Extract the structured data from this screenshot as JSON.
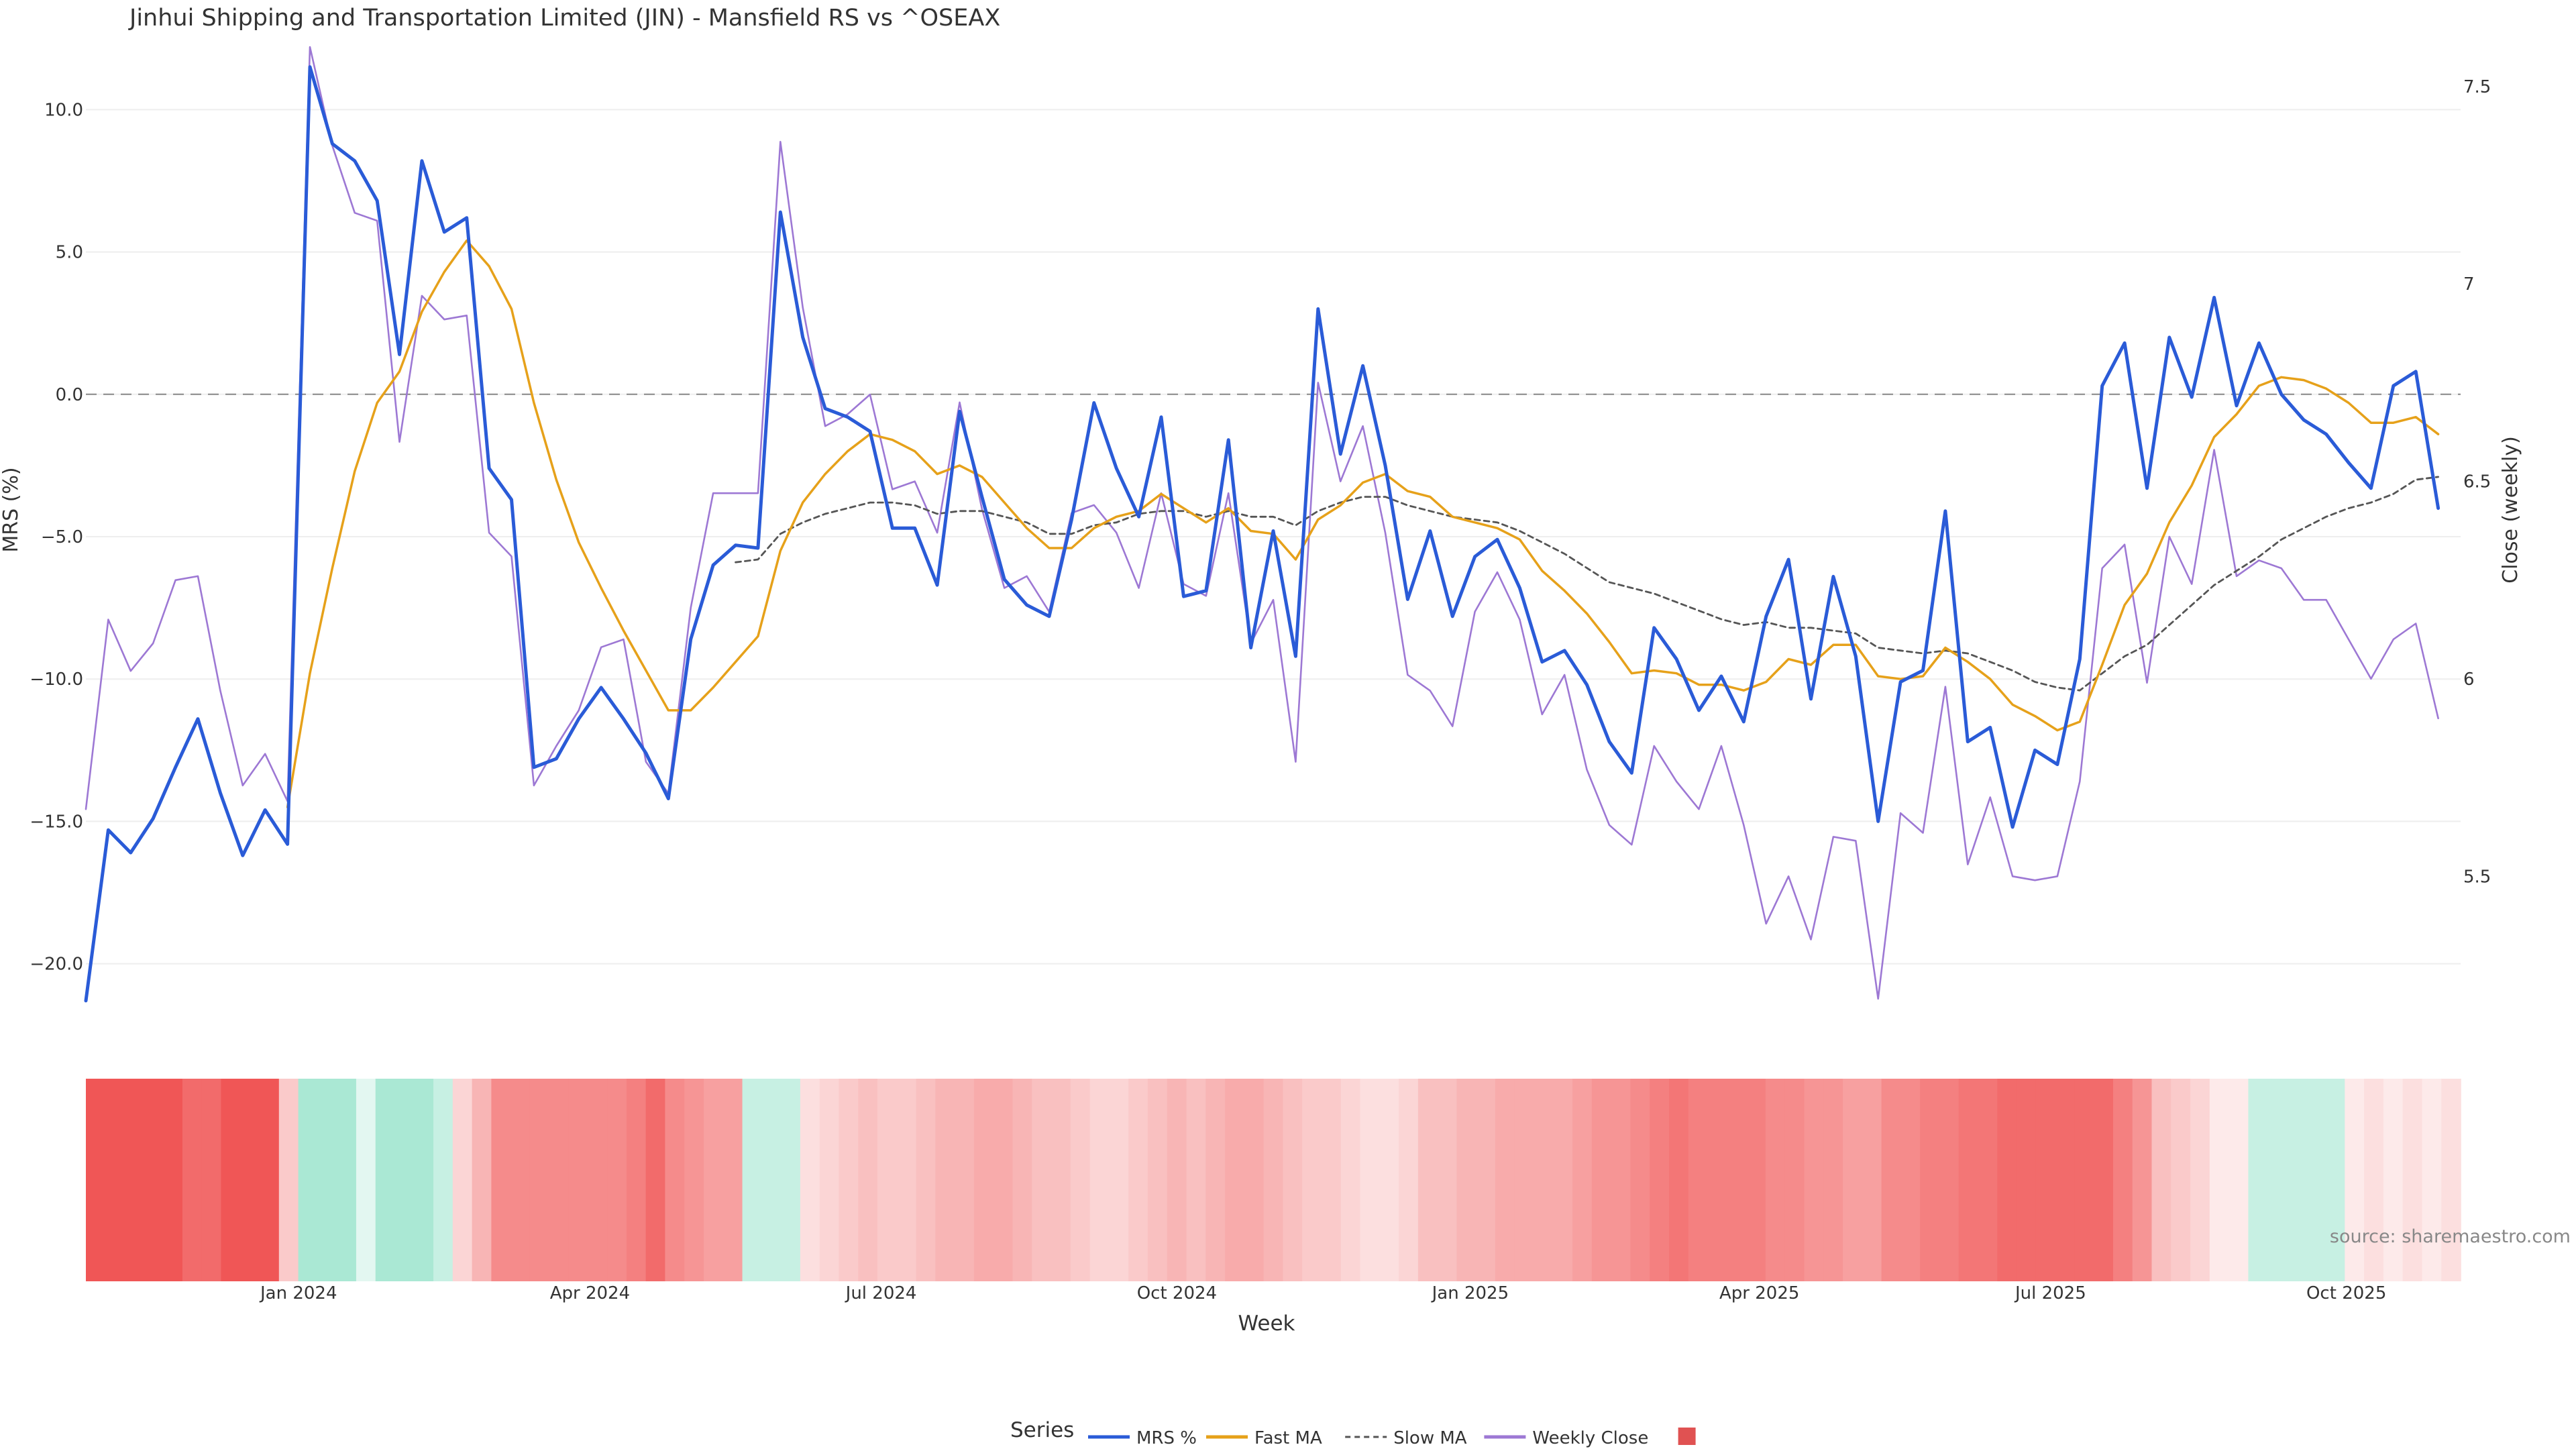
{
  "chart_data": {
    "type": "line",
    "title": "Jinhui Shipping and Transportation Limited (JIN) - Mansfield RS vs ^OSEAX",
    "xlabel": "Week",
    "ylabel_left": "MRS (%)",
    "ylabel_right": "Close (weekly)",
    "source": "source: sharemaestro.com",
    "grid": true,
    "legend_position": "bottom-center",
    "legend_title": "Series",
    "y_left_range": [
      -22.2,
      12.2
    ],
    "y_left_ticks": [
      "10.0",
      "5.0",
      "0.0",
      "−5.0",
      "−10.0",
      "−15.0",
      "−20.0"
    ],
    "y_right_range": [
      5.12,
      7.6
    ],
    "y_right_ticks": [
      "7.5",
      "7",
      "6.5",
      "6",
      "5.5"
    ],
    "x_range": [
      0,
      106
    ],
    "x_ticks": [
      {
        "label": "Jan 2024",
        "i": 9.5
      },
      {
        "label": "Apr 2024",
        "i": 22.5
      },
      {
        "label": "Jul 2024",
        "i": 35.5
      },
      {
        "label": "Oct 2024",
        "i": 48.7
      },
      {
        "label": "Jan 2025",
        "i": 61.8
      },
      {
        "label": "Apr 2025",
        "i": 74.7
      },
      {
        "label": "Jul 2025",
        "i": 87.7
      },
      {
        "label": "Oct 2025",
        "i": 100.9
      }
    ],
    "zero_line": 0,
    "series": [
      {
        "name": "MRS %",
        "color": "#2a5bd7",
        "axis": "left",
        "values": [
          -21.3,
          -15.3,
          -16.1,
          -14.9,
          -13.1,
          -11.4,
          -14.0,
          -16.2,
          -14.6,
          -15.8,
          11.5,
          8.8,
          8.2,
          6.8,
          1.4,
          8.2,
          5.7,
          6.2,
          -2.6,
          -3.7,
          -13.1,
          -12.8,
          -11.4,
          -10.3,
          -11.4,
          -12.6,
          -14.2,
          -8.6,
          -6.0,
          -5.3,
          -5.4,
          6.4,
          2.0,
          -0.5,
          -0.8,
          -1.3,
          -4.7,
          -4.7,
          -6.7,
          -0.6,
          -3.6,
          -6.5,
          -7.4,
          -7.8,
          -4.4,
          -0.3,
          -2.6,
          -4.3,
          -0.8,
          -7.1,
          -6.9,
          -1.6,
          -8.9,
          -4.8,
          -9.2,
          3.0,
          -2.1,
          1.0,
          -2.5,
          -7.2,
          -4.8,
          -7.8,
          -5.7,
          -5.1,
          -6.8,
          -9.4,
          -9.0,
          -10.2,
          -12.2,
          -13.3,
          -8.2,
          -9.3,
          -11.1,
          -9.9,
          -11.5,
          -7.8,
          -5.8,
          -10.7,
          -6.4,
          -9.2,
          -15.0,
          -10.1,
          -9.7,
          -4.1,
          -12.2,
          -11.7,
          -15.2,
          -12.5,
          -13.0,
          -9.3,
          0.3,
          1.8,
          -3.3,
          2.0,
          -0.1,
          3.4,
          -0.4,
          1.8,
          0.0,
          -0.9,
          -1.4,
          -2.4,
          -3.3,
          0.3,
          0.8,
          -4.0
        ]
      },
      {
        "name": "Fast MA",
        "color": "#e6a11a",
        "axis": "left",
        "values": [
          null,
          null,
          null,
          null,
          null,
          null,
          null,
          null,
          null,
          -14.5,
          -9.8,
          -6.1,
          -2.7,
          -0.3,
          0.8,
          2.9,
          4.3,
          5.4,
          4.5,
          3.0,
          -0.3,
          -3.0,
          -5.2,
          -6.8,
          -8.3,
          -9.7,
          -11.1,
          -11.1,
          -10.3,
          -9.4,
          -8.5,
          -5.5,
          -3.8,
          -2.8,
          -2.0,
          -1.4,
          -1.6,
          -2.0,
          -2.8,
          -2.5,
          -2.9,
          -3.8,
          -4.7,
          -5.4,
          -5.4,
          -4.7,
          -4.3,
          -4.1,
          -3.5,
          -4.0,
          -4.5,
          -4.0,
          -4.8,
          -4.9,
          -5.8,
          -4.4,
          -3.9,
          -3.1,
          -2.8,
          -3.4,
          -3.6,
          -4.3,
          -4.5,
          -4.7,
          -5.1,
          -6.2,
          -6.9,
          -7.7,
          -8.7,
          -9.8,
          -9.7,
          -9.8,
          -10.2,
          -10.2,
          -10.4,
          -10.1,
          -9.3,
          -9.5,
          -8.8,
          -8.8,
          -9.9,
          -10.0,
          -9.9,
          -8.9,
          -9.4,
          -10.0,
          -10.9,
          -11.3,
          -11.8,
          -11.5,
          -9.5,
          -7.4,
          -6.3,
          -4.5,
          -3.2,
          -1.5,
          -0.7,
          0.3,
          0.6,
          0.5,
          0.2,
          -0.3,
          -1.0,
          -1.0,
          -0.8,
          -1.4
        ]
      },
      {
        "name": "Slow MA",
        "color": "#555555",
        "axis": "left",
        "dash": true,
        "values": [
          null,
          null,
          null,
          null,
          null,
          null,
          null,
          null,
          null,
          null,
          null,
          null,
          null,
          null,
          null,
          null,
          null,
          null,
          null,
          null,
          null,
          null,
          null,
          null,
          null,
          null,
          null,
          null,
          null,
          -5.9,
          -5.8,
          -4.9,
          -4.5,
          -4.2,
          -4.0,
          -3.8,
          -3.8,
          -3.9,
          -4.2,
          -4.1,
          -4.1,
          -4.3,
          -4.5,
          -4.9,
          -4.9,
          -4.6,
          -4.5,
          -4.2,
          -4.1,
          -4.1,
          -4.3,
          -4.1,
          -4.3,
          -4.3,
          -4.6,
          -4.1,
          -3.8,
          -3.6,
          -3.6,
          -3.9,
          -4.1,
          -4.3,
          -4.4,
          -4.5,
          -4.8,
          -5.2,
          -5.6,
          -6.1,
          -6.6,
          -6.8,
          -7.0,
          -7.3,
          -7.6,
          -7.9,
          -8.1,
          -8.0,
          -8.2,
          -8.2,
          -8.3,
          -8.4,
          -8.9,
          -9.0,
          -9.1,
          -9.0,
          -9.1,
          -9.4,
          -9.7,
          -10.1,
          -10.3,
          -10.4,
          -9.8,
          -9.2,
          -8.8,
          -8.1,
          -7.4,
          -6.7,
          -6.2,
          -5.7,
          -5.1,
          -4.7,
          -4.3,
          -4.0,
          -3.8,
          -3.5,
          -3.0,
          -2.9
        ]
      },
      {
        "name": "Weekly Close",
        "color": "#9d78d4",
        "axis": "right",
        "values": [
          5.67,
          6.15,
          6.02,
          6.09,
          6.25,
          6.26,
          5.97,
          5.73,
          5.81,
          5.69,
          7.6,
          7.35,
          7.18,
          7.16,
          6.6,
          6.97,
          6.91,
          6.92,
          6.37,
          6.31,
          5.73,
          5.83,
          5.92,
          6.08,
          6.1,
          5.79,
          5.71,
          6.18,
          6.47,
          6.47,
          6.47,
          7.36,
          6.94,
          6.64,
          6.67,
          6.72,
          6.48,
          6.5,
          6.37,
          6.7,
          6.43,
          6.23,
          6.26,
          6.17,
          6.42,
          6.44,
          6.37,
          6.23,
          6.47,
          6.24,
          6.21,
          6.47,
          6.09,
          6.2,
          5.79,
          6.75,
          6.5,
          6.64,
          6.37,
          6.01,
          5.97,
          5.88,
          6.17,
          6.27,
          6.15,
          5.91,
          6.01,
          5.77,
          5.63,
          5.58,
          5.83,
          5.74,
          5.67,
          5.83,
          5.63,
          5.38,
          5.5,
          5.34,
          5.6,
          5.59,
          5.19,
          5.66,
          5.61,
          5.98,
          5.53,
          5.7,
          5.5,
          5.49,
          5.5,
          5.74,
          6.28,
          6.34,
          5.99,
          6.36,
          6.24,
          6.58,
          6.26,
          6.3,
          6.28,
          6.2,
          6.2,
          6.1,
          6.0,
          6.1,
          6.14,
          5.9
        ]
      }
    ],
    "heatmap": {
      "name": "MRS heat strip",
      "low_color": "#f05656",
      "mid_color": "#ffffff",
      "high_color": "#8ee0c6",
      "range": [
        -16,
        4
      ],
      "values": [
        -16,
        -16,
        -16,
        -16,
        -16,
        -14,
        -14,
        -16,
        -16,
        -16,
        -5,
        3,
        3,
        3,
        1,
        3,
        3,
        3,
        2,
        -4,
        -7,
        -11,
        -11,
        -11,
        -11,
        -11,
        -11,
        -11,
        -12,
        -14,
        -11,
        -10,
        -9,
        -9,
        2,
        2,
        2,
        -3,
        -4,
        -5,
        -6,
        -5,
        -5,
        -6,
        -7,
        -7,
        -8,
        -8,
        -7,
        -6,
        -6,
        -5,
        -4,
        -4,
        -5,
        -6,
        -7,
        -6,
        -7,
        -8,
        -8,
        -7,
        -6,
        -5,
        -5,
        -4,
        -3,
        -3,
        -4,
        -6,
        -6,
        -7,
        -7,
        -8,
        -8,
        -8,
        -8,
        -9,
        -10,
        -10,
        -11,
        -12,
        -13,
        -12,
        -12,
        -12,
        -12,
        -11,
        -11,
        -10,
        -10,
        -9,
        -9,
        -11,
        -11,
        -12,
        -12,
        -13,
        -13,
        -14,
        -14,
        -14,
        -14,
        -14,
        -14,
        -12,
        -10,
        -6,
        -5,
        -4,
        -2,
        -2,
        2,
        2,
        2,
        2,
        2,
        -2,
        -3,
        -2,
        -3,
        -2,
        -3
      ]
    },
    "legend": [
      {
        "name": "MRS %",
        "color": "#2a5bd7",
        "style": "solid"
      },
      {
        "name": "Fast MA",
        "color": "#e6a11a",
        "style": "solid"
      },
      {
        "name": "Slow MA",
        "color": "#555555",
        "style": "dash"
      },
      {
        "name": "Weekly Close",
        "color": "#9d78d4",
        "style": "solid"
      },
      {
        "name": "",
        "color": "#e05252",
        "style": "square"
      }
    ]
  }
}
